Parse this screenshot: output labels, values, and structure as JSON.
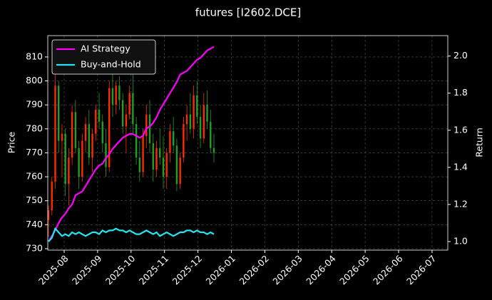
{
  "chart_data": {
    "type": "candlestick",
    "title": "futures [I2602.DCE]",
    "ylabel": "Price",
    "y2label": "Return",
    "xticks": [
      "2025-08",
      "2025-09",
      "2025-10",
      "2025-11",
      "2025-12",
      "2026-01",
      "2026-02",
      "2026-03",
      "2026-04",
      "2026-05",
      "2026-06",
      "2026-07"
    ],
    "ylim": [
      729.4,
      818.9
    ],
    "yticks": [
      730,
      740,
      750,
      760,
      770,
      780,
      790,
      800,
      810
    ],
    "y2lim": [
      0.954,
      2.11
    ],
    "y2ticks": [
      {
        "value": 1,
        "label": "1.0"
      },
      1.2,
      1.4,
      1.6,
      1.8,
      {
        "value": 2,
        "label": "2.0"
      }
    ],
    "grid": true,
    "legend": "upper-left",
    "up_color": "#ff2a00",
    "down_color": "#1fa01f",
    "open": [
      742,
      746,
      758,
      798,
      775,
      778,
      757,
      768,
      787,
      772,
      760,
      775,
      782,
      768,
      778,
      788,
      783,
      774,
      764,
      797,
      790,
      798,
      792,
      781,
      786,
      795,
      782,
      768,
      762,
      777,
      786,
      774,
      763,
      772,
      768,
      760,
      770,
      779,
      773,
      757,
      768,
      782,
      786,
      780,
      794,
      785,
      776,
      790,
      783,
      772
    ],
    "high": [
      748,
      760,
      805,
      800,
      782,
      780,
      772,
      790,
      792,
      775,
      778,
      785,
      788,
      780,
      790,
      795,
      786,
      780,
      800,
      803,
      800,
      802,
      795,
      790,
      798,
      805,
      785,
      775,
      780,
      790,
      792,
      778,
      775,
      780,
      777,
      772,
      782,
      785,
      776,
      770,
      785,
      790,
      795,
      798,
      800,
      790,
      795,
      796,
      788,
      778
    ],
    "low": [
      735,
      744,
      755,
      770,
      760,
      752,
      748,
      765,
      770,
      755,
      758,
      770,
      765,
      762,
      775,
      780,
      770,
      760,
      762,
      785,
      786,
      788,
      778,
      770,
      784,
      778,
      765,
      758,
      760,
      772,
      770,
      758,
      760,
      765,
      755,
      755,
      766,
      770,
      754,
      755,
      766,
      775,
      778,
      776,
      782,
      772,
      774,
      780,
      770,
      766
    ],
    "close": [
      746,
      758,
      798,
      775,
      778,
      757,
      768,
      787,
      772,
      760,
      775,
      782,
      768,
      778,
      788,
      783,
      774,
      764,
      797,
      790,
      798,
      792,
      781,
      786,
      795,
      782,
      768,
      762,
      777,
      786,
      774,
      763,
      772,
      768,
      760,
      770,
      779,
      773,
      757,
      768,
      782,
      786,
      780,
      794,
      785,
      776,
      790,
      783,
      772,
      770
    ],
    "series": [
      {
        "name": "AI Strategy",
        "color": "#ff00ff",
        "axis": "y2",
        "values": [
          1.0,
          1.03,
          1.06,
          1.1,
          1.13,
          1.15,
          1.18,
          1.2,
          1.25,
          1.26,
          1.27,
          1.3,
          1.33,
          1.36,
          1.39,
          1.41,
          1.42,
          1.45,
          1.47,
          1.5,
          1.52,
          1.54,
          1.56,
          1.57,
          1.58,
          1.58,
          1.57,
          1.56,
          1.57,
          1.61,
          1.62,
          1.64,
          1.67,
          1.71,
          1.74,
          1.77,
          1.8,
          1.83,
          1.86,
          1.9,
          1.91,
          1.92,
          1.94,
          1.96,
          1.98,
          1.99,
          2.01,
          2.03,
          2.04,
          2.05
        ]
      },
      {
        "name": "Buy-and-Hold",
        "color": "#22e5f0",
        "axis": "y2",
        "values": [
          1.0,
          1.02,
          1.07,
          1.05,
          1.03,
          1.04,
          1.03,
          1.05,
          1.04,
          1.05,
          1.04,
          1.03,
          1.04,
          1.05,
          1.05,
          1.04,
          1.06,
          1.05,
          1.06,
          1.06,
          1.07,
          1.06,
          1.06,
          1.05,
          1.06,
          1.05,
          1.04,
          1.04,
          1.05,
          1.06,
          1.05,
          1.04,
          1.05,
          1.03,
          1.04,
          1.05,
          1.04,
          1.03,
          1.04,
          1.05,
          1.05,
          1.06,
          1.06,
          1.05,
          1.06,
          1.05,
          1.05,
          1.04,
          1.05,
          1.04
        ]
      }
    ]
  }
}
